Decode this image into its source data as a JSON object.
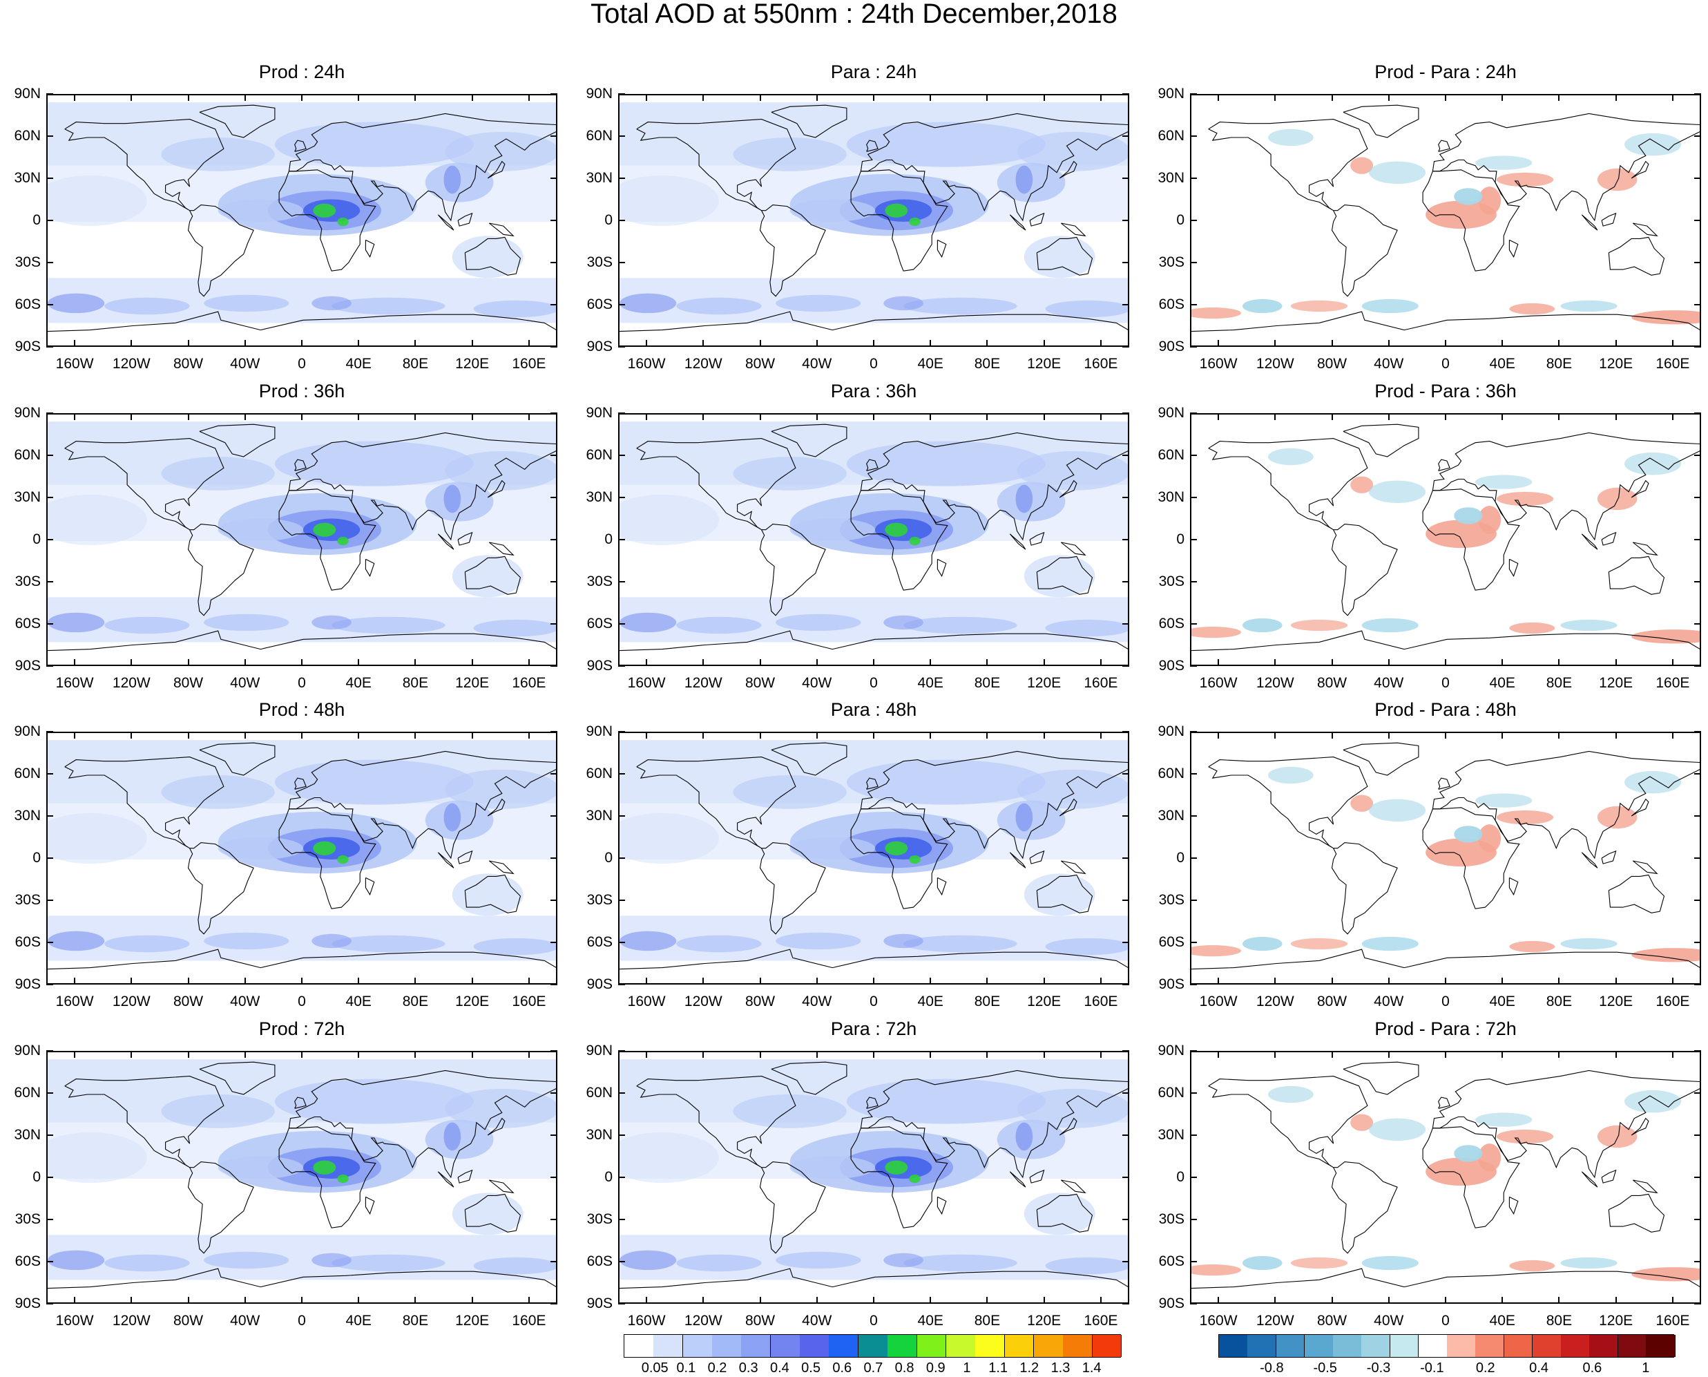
{
  "title": "Total AOD at 550nm : 24th December,2018",
  "panels": [
    {
      "title": "Prod : 24h",
      "type": "aod"
    },
    {
      "title": "Para : 24h",
      "type": "aod"
    },
    {
      "title": "Prod - Para : 24h",
      "type": "diff"
    },
    {
      "title": "Prod : 36h",
      "type": "aod"
    },
    {
      "title": "Para : 36h",
      "type": "aod"
    },
    {
      "title": "Prod - Para : 36h",
      "type": "diff"
    },
    {
      "title": "Prod : 48h",
      "type": "aod"
    },
    {
      "title": "Para : 48h",
      "type": "aod"
    },
    {
      "title": "Prod - Para : 48h",
      "type": "diff"
    },
    {
      "title": "Prod : 72h",
      "type": "aod"
    },
    {
      "title": "Para : 72h",
      "type": "aod"
    },
    {
      "title": "Prod - Para : 72h",
      "type": "diff"
    }
  ],
  "lat_labels": [
    "90N",
    "60N",
    "30N",
    "0",
    "30S",
    "60S",
    "90S"
  ],
  "lon_labels": [
    "160W",
    "120W",
    "80W",
    "40W",
    "0",
    "40E",
    "80E",
    "120E",
    "160E"
  ],
  "lat_values": [
    90,
    60,
    30,
    0,
    -30,
    -60,
    -90
  ],
  "lon_values": [
    -160,
    -120,
    -80,
    -40,
    0,
    40,
    80,
    120,
    160
  ],
  "aod_colorbar": {
    "labels": [
      "0.05",
      "0.1",
      "0.2",
      "0.3",
      "0.4",
      "0.5",
      "0.6",
      "0.7",
      "0.8",
      "0.9",
      "1",
      "1.1",
      "1.2",
      "1.3",
      "1.4"
    ],
    "colors": [
      "#ffffff",
      "#d7e3fb",
      "#bccffa",
      "#a3baf8",
      "#8ca2f5",
      "#7383ef",
      "#5864ec",
      "#1f63f4",
      "#0b8e93",
      "#14d33c",
      "#7ff019",
      "#c8fa2b",
      "#fcfd1a",
      "#fbd00a",
      "#f9a708",
      "#f67c08",
      "#f33a0b"
    ]
  },
  "diff_colorbar": {
    "labels": [
      "-0.8",
      "-0.5",
      "-0.3",
      "-0.1",
      "0.2",
      "0.4",
      "0.6",
      "1"
    ],
    "colors": [
      "#08519c",
      "#2171b5",
      "#4292c6",
      "#5aa7cf",
      "#79bdd9",
      "#9fd3e3",
      "#c6e9f0",
      "#ffffff",
      "#fbbba8",
      "#f58a71",
      "#ef6548",
      "#e0412e",
      "#c9201f",
      "#a50f15",
      "#7f0a0f",
      "#5c0000"
    ]
  },
  "colors": {
    "aod_light": "#d9e4fb",
    "aod_mid": "#b8cbf8",
    "aod_high": "#8a9ff2",
    "aod_dust": "#3f5fe9",
    "aod_peak": "#2fd13b",
    "diff_pos": "#f4a592",
    "diff_neg": "#a8d8ea"
  }
}
